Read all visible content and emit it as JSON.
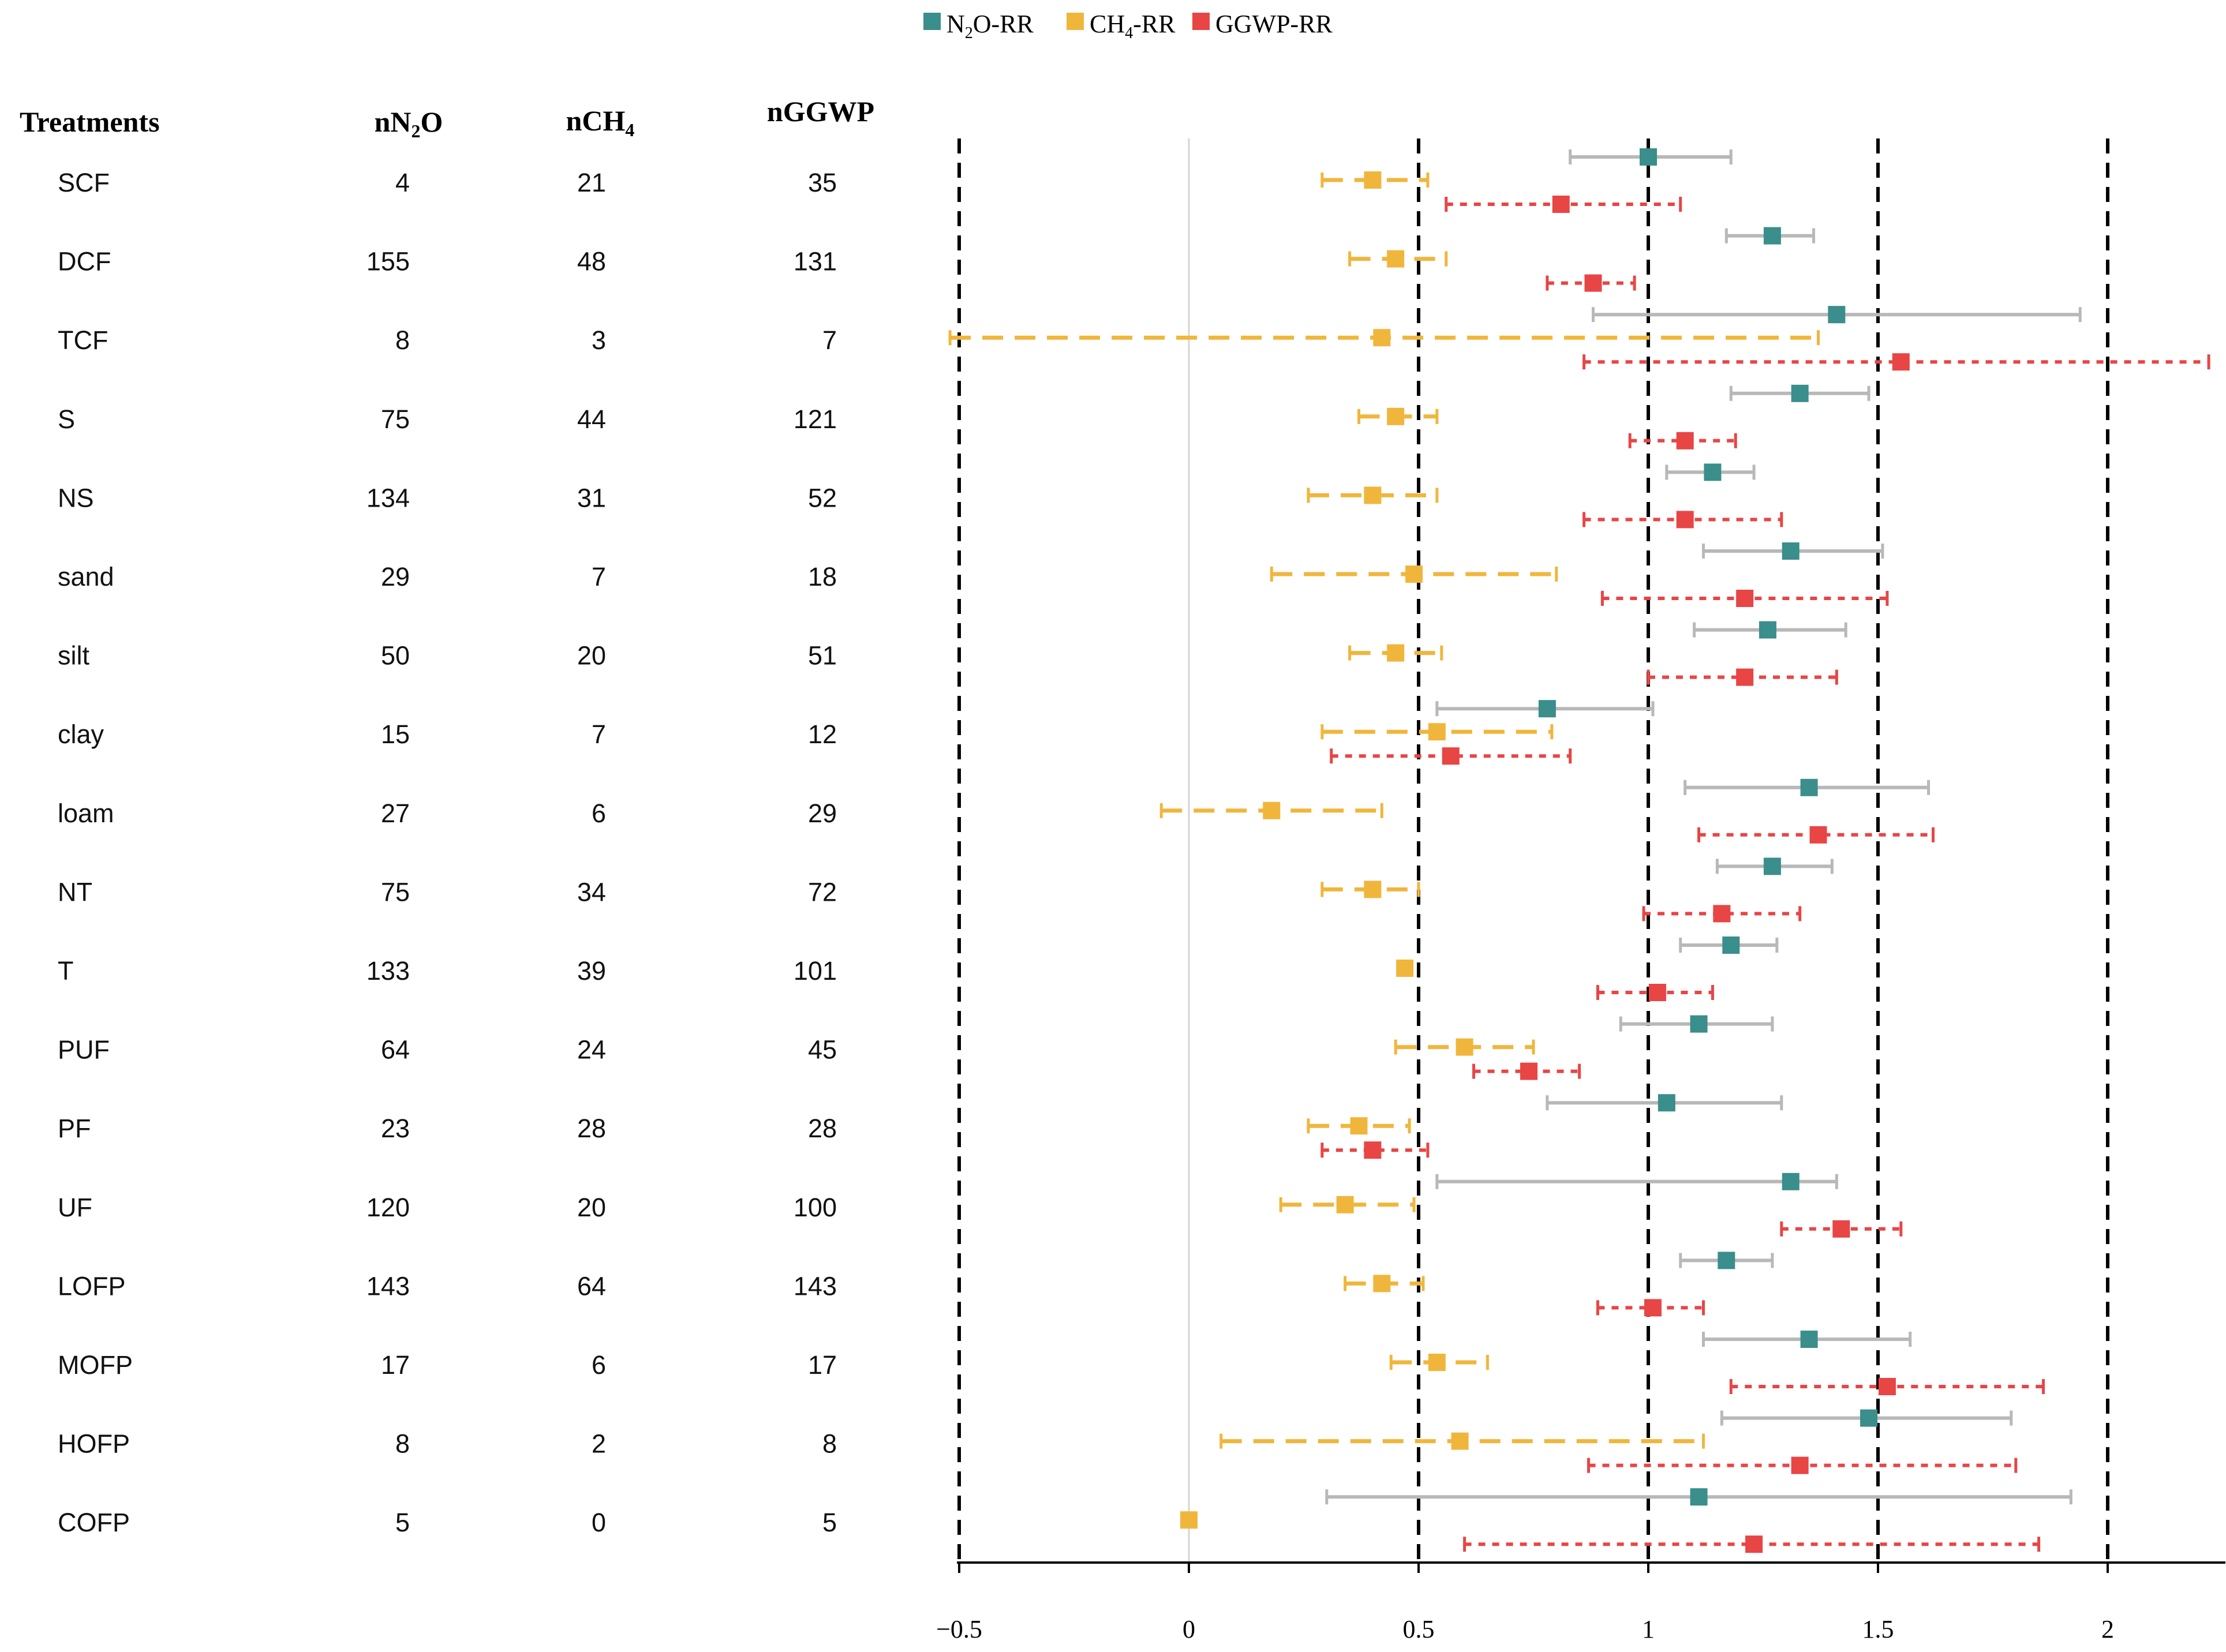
{
  "chart_data": {
    "type": "forest",
    "legend": [
      {
        "key": "n2o",
        "label_main": "N",
        "label_sub": "2",
        "label_tail": "O-RR",
        "color": "#3a8e8b"
      },
      {
        "key": "ch4",
        "label_main": "CH",
        "label_sub": "4",
        "label_tail": "-RR",
        "color": "#f0b63c"
      },
      {
        "key": "ggwp",
        "label_main": "GGWP-RR",
        "label_sub": "",
        "label_tail": "",
        "color": "#e84545"
      }
    ],
    "columns": {
      "treatments": "Treatments",
      "n_n2o": {
        "main": "nN",
        "sub": "2",
        "tail": "O"
      },
      "n_ch4": {
        "main": "nCH",
        "sub": "4",
        "tail": ""
      },
      "n_ggwp": {
        "main": "nGGWP",
        "sub": "",
        "tail": ""
      }
    },
    "xaxis": {
      "ticks": [
        -0.5,
        0,
        0.5,
        1,
        1.5,
        2
      ],
      "tick_labels": [
        "−0.5",
        "0",
        "0.5",
        "1",
        "1.5",
        "2"
      ],
      "dashed_lines": [
        -0.5,
        0.5,
        1,
        1.5,
        2
      ],
      "zero_line": 0,
      "xlim": [
        -0.5,
        2.2
      ]
    },
    "rows": [
      {
        "name": "SCF",
        "n_n2o": "4",
        "n_ch4": "21",
        "n_ggwp": "35",
        "n2o": {
          "est": 1.0,
          "lo": 0.83,
          "hi": 1.18
        },
        "ch4": {
          "est": 0.4,
          "lo": 0.29,
          "hi": 0.52
        },
        "ggwp": {
          "est": 0.81,
          "lo": 0.56,
          "hi": 1.07
        }
      },
      {
        "name": "DCF",
        "n_n2o": "155",
        "n_ch4": "48",
        "n_ggwp": "131",
        "n2o": {
          "est": 1.27,
          "lo": 1.17,
          "hi": 1.36
        },
        "ch4": {
          "est": 0.45,
          "lo": 0.35,
          "hi": 0.56
        },
        "ggwp": {
          "est": 0.88,
          "lo": 0.78,
          "hi": 0.97
        }
      },
      {
        "name": "TCF",
        "n_n2o": "8",
        "n_ch4": "3",
        "n_ggwp": "7",
        "n2o": {
          "est": 1.41,
          "lo": 0.88,
          "hi": 1.94
        },
        "ch4": {
          "est": 0.42,
          "lo": -0.52,
          "hi": 1.37
        },
        "ggwp": {
          "est": 1.55,
          "lo": 0.86,
          "hi": 2.22
        }
      },
      {
        "name": "S",
        "n_n2o": "75",
        "n_ch4": "44",
        "n_ggwp": "121",
        "n2o": {
          "est": 1.33,
          "lo": 1.18,
          "hi": 1.48
        },
        "ch4": {
          "est": 0.45,
          "lo": 0.37,
          "hi": 0.54
        },
        "ggwp": {
          "est": 1.08,
          "lo": 0.96,
          "hi": 1.19
        }
      },
      {
        "name": "NS",
        "n_n2o": "134",
        "n_ch4": "31",
        "n_ggwp": "52",
        "n2o": {
          "est": 1.14,
          "lo": 1.04,
          "hi": 1.23
        },
        "ch4": {
          "est": 0.4,
          "lo": 0.26,
          "hi": 0.54
        },
        "ggwp": {
          "est": 1.08,
          "lo": 0.86,
          "hi": 1.29
        }
      },
      {
        "name": "sand",
        "n_n2o": "29",
        "n_ch4": "7",
        "n_ggwp": "18",
        "n2o": {
          "est": 1.31,
          "lo": 1.12,
          "hi": 1.51
        },
        "ch4": {
          "est": 0.49,
          "lo": 0.18,
          "hi": 0.8
        },
        "ggwp": {
          "est": 1.21,
          "lo": 0.9,
          "hi": 1.52
        }
      },
      {
        "name": "silt",
        "n_n2o": "50",
        "n_ch4": "20",
        "n_ggwp": "51",
        "n2o": {
          "est": 1.26,
          "lo": 1.1,
          "hi": 1.43
        },
        "ch4": {
          "est": 0.45,
          "lo": 0.35,
          "hi": 0.55
        },
        "ggwp": {
          "est": 1.21,
          "lo": 1.0,
          "hi": 1.41
        }
      },
      {
        "name": "clay",
        "n_n2o": "15",
        "n_ch4": "7",
        "n_ggwp": "12",
        "n2o": {
          "est": 0.78,
          "lo": 0.54,
          "hi": 1.01
        },
        "ch4": {
          "est": 0.54,
          "lo": 0.29,
          "hi": 0.79
        },
        "ggwp": {
          "est": 0.57,
          "lo": 0.31,
          "hi": 0.83
        }
      },
      {
        "name": "loam",
        "n_n2o": "27",
        "n_ch4": "6",
        "n_ggwp": "29",
        "n2o": {
          "est": 1.35,
          "lo": 1.08,
          "hi": 1.61
        },
        "ch4": {
          "est": 0.18,
          "lo": -0.06,
          "hi": 0.42
        },
        "ggwp": {
          "est": 1.37,
          "lo": 1.11,
          "hi": 1.62
        }
      },
      {
        "name": "NT",
        "n_n2o": "75",
        "n_ch4": "34",
        "n_ggwp": "72",
        "n2o": {
          "est": 1.27,
          "lo": 1.15,
          "hi": 1.4
        },
        "ch4": {
          "est": 0.4,
          "lo": 0.29,
          "hi": 0.5
        },
        "ggwp": {
          "est": 1.16,
          "lo": 0.99,
          "hi": 1.33
        }
      },
      {
        "name": "T",
        "n_n2o": "133",
        "n_ch4": "39",
        "n_ggwp": "101",
        "n2o": {
          "est": 1.18,
          "lo": 1.07,
          "hi": 1.28
        },
        "ch4": {
          "est": 0.47,
          "lo": 0.47,
          "hi": 0.47
        },
        "ggwp": {
          "est": 1.02,
          "lo": 0.89,
          "hi": 1.14
        }
      },
      {
        "name": "PUF",
        "n_n2o": "64",
        "n_ch4": "24",
        "n_ggwp": "45",
        "n2o": {
          "est": 1.11,
          "lo": 0.94,
          "hi": 1.27
        },
        "ch4": {
          "est": 0.6,
          "lo": 0.45,
          "hi": 0.75
        },
        "ggwp": {
          "est": 0.74,
          "lo": 0.62,
          "hi": 0.85
        }
      },
      {
        "name": "PF",
        "n_n2o": "23",
        "n_ch4": "28",
        "n_ggwp": "28",
        "n2o": {
          "est": 1.04,
          "lo": 0.78,
          "hi": 1.29
        },
        "ch4": {
          "est": 0.37,
          "lo": 0.26,
          "hi": 0.48
        },
        "ggwp": {
          "est": 0.4,
          "lo": 0.29,
          "hi": 0.52
        }
      },
      {
        "name": "UF",
        "n_n2o": "120",
        "n_ch4": "20",
        "n_ggwp": "100",
        "n2o": {
          "est": 1.31,
          "lo": 0.54,
          "hi": 1.41
        },
        "ch4": {
          "est": 0.34,
          "lo": 0.2,
          "hi": 0.49
        },
        "ggwp": {
          "est": 1.42,
          "lo": 1.29,
          "hi": 1.55
        }
      },
      {
        "name": "LOFP",
        "n_n2o": "143",
        "n_ch4": "64",
        "n_ggwp": "143",
        "n2o": {
          "est": 1.17,
          "lo": 1.07,
          "hi": 1.27
        },
        "ch4": {
          "est": 0.42,
          "lo": 0.34,
          "hi": 0.51
        },
        "ggwp": {
          "est": 1.01,
          "lo": 0.89,
          "hi": 1.12
        }
      },
      {
        "name": "MOFP",
        "n_n2o": "17",
        "n_ch4": "6",
        "n_ggwp": "17",
        "n2o": {
          "est": 1.35,
          "lo": 1.12,
          "hi": 1.57
        },
        "ch4": {
          "est": 0.54,
          "lo": 0.44,
          "hi": 0.65
        },
        "ggwp": {
          "est": 1.52,
          "lo": 1.18,
          "hi": 1.86
        }
      },
      {
        "name": "HOFP",
        "n_n2o": "8",
        "n_ch4": "2",
        "n_ggwp": "8",
        "n2o": {
          "est": 1.48,
          "lo": 1.16,
          "hi": 1.79
        },
        "ch4": {
          "est": 0.59,
          "lo": 0.07,
          "hi": 1.12
        },
        "ggwp": {
          "est": 1.33,
          "lo": 0.87,
          "hi": 1.8
        }
      },
      {
        "name": "COFP",
        "n_n2o": "5",
        "n_ch4": "0",
        "n_ggwp": "5",
        "n2o": {
          "est": 1.11,
          "lo": 0.3,
          "hi": 1.92
        },
        "ch4": {
          "est": 0.0,
          "lo": 0.0,
          "hi": 0.0
        },
        "ggwp": {
          "est": 1.23,
          "lo": 0.6,
          "hi": 1.85
        }
      }
    ]
  }
}
